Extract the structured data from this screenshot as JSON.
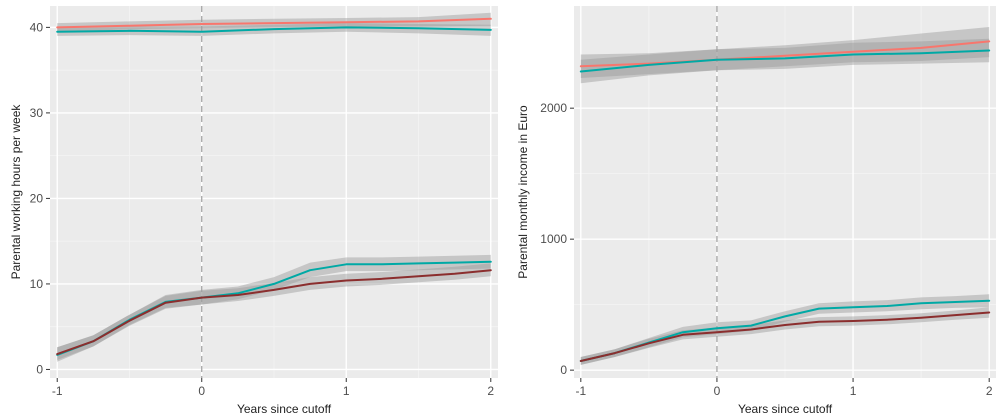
{
  "colors": {
    "panel_bg": "#EBEBEB",
    "grid_major": "#FFFFFF",
    "grid_minor": "#F4F4F4",
    "cutoff_line": "#9E9E9E",
    "ribbon": "#999999",
    "tick_text": "#4D4D4D",
    "axis_title": "#222222"
  },
  "chart_data": [
    {
      "type": "line",
      "xlabel": "Years since cutoff",
      "ylabel": "Parental working hours per week",
      "xlim": [
        -1.05,
        2.05
      ],
      "ylim": [
        -1,
        42.5
      ],
      "x_ticks": [
        -1,
        0,
        1,
        2
      ],
      "x_tick_labels": [
        "-1",
        "0",
        "1",
        "2"
      ],
      "y_ticks": [
        0,
        10,
        20,
        30,
        40
      ],
      "y_tick_labels": [
        "0",
        "10",
        "20",
        "30",
        "40"
      ],
      "vline": 0,
      "grid": true,
      "legend": "none",
      "series": [
        {
          "color": "#F8766D",
          "x": [
            -1,
            -0.5,
            0,
            0.5,
            1,
            1.5,
            2
          ],
          "y": [
            40.0,
            40.2,
            40.4,
            40.5,
            40.6,
            40.7,
            41.0
          ],
          "ci_low": [
            39.4,
            39.8,
            39.9,
            40.0,
            40.1,
            40.1,
            40.2
          ],
          "ci_high": [
            40.5,
            40.7,
            40.9,
            41.0,
            41.1,
            41.2,
            41.7
          ]
        },
        {
          "color": "#00A9A5",
          "x": [
            -1,
            -0.5,
            0,
            0.5,
            1,
            1.5,
            2
          ],
          "y": [
            39.5,
            39.6,
            39.5,
            39.8,
            40.0,
            39.9,
            39.7
          ],
          "ci_low": [
            39.0,
            39.1,
            39.0,
            39.3,
            39.5,
            39.3,
            39.0
          ],
          "ci_high": [
            40.0,
            40.1,
            40.1,
            40.3,
            40.5,
            40.4,
            40.3
          ]
        },
        {
          "color": "#00A9A5",
          "x": [
            -1,
            -0.75,
            -0.5,
            -0.25,
            0,
            0.25,
            0.5,
            0.75,
            1,
            1.25,
            1.5,
            1.75,
            2
          ],
          "y": [
            1.7,
            3.3,
            5.8,
            7.9,
            8.4,
            8.9,
            10.0,
            11.6,
            12.3,
            12.3,
            12.4,
            12.5,
            12.6
          ],
          "ci_low": [
            0.9,
            2.7,
            5.2,
            7.2,
            7.6,
            8.2,
            9.3,
            10.8,
            11.5,
            11.5,
            11.6,
            11.7,
            11.8
          ],
          "ci_high": [
            2.6,
            4.0,
            6.4,
            8.7,
            9.3,
            9.7,
            10.8,
            12.5,
            13.1,
            13.1,
            13.2,
            13.3,
            13.4
          ]
        },
        {
          "color": "#8B2E2E",
          "x": [
            -1,
            -0.75,
            -0.5,
            -0.25,
            0,
            0.25,
            0.5,
            0.75,
            1,
            1.25,
            1.5,
            1.75,
            2
          ],
          "y": [
            1.8,
            3.3,
            5.7,
            7.8,
            8.4,
            8.7,
            9.3,
            10.0,
            10.4,
            10.6,
            10.9,
            11.2,
            11.6
          ],
          "ci_low": [
            1.1,
            2.7,
            5.1,
            7.1,
            7.6,
            8.0,
            8.6,
            9.3,
            9.7,
            9.9,
            10.2,
            10.5,
            10.9
          ],
          "ci_high": [
            2.6,
            4.0,
            6.4,
            8.6,
            9.2,
            9.5,
            10.1,
            10.8,
            11.2,
            11.4,
            11.7,
            12.0,
            12.4
          ]
        }
      ]
    },
    {
      "type": "line",
      "xlabel": "Years since cutoff",
      "ylabel": "Parental monthly income in Euro",
      "xlim": [
        -1.05,
        2.05
      ],
      "ylim": [
        -60,
        2780
      ],
      "x_ticks": [
        -1,
        0,
        1,
        2
      ],
      "x_tick_labels": [
        "-1",
        "0",
        "1",
        "2"
      ],
      "y_ticks": [
        0,
        1000,
        2000
      ],
      "y_tick_labels": [
        "0",
        "1000",
        "2000"
      ],
      "vline": 0,
      "grid": true,
      "legend": "none",
      "series": [
        {
          "color": "#F8766D",
          "x": [
            -1,
            -0.5,
            0,
            0.5,
            1,
            1.5,
            2
          ],
          "y": [
            2320,
            2340,
            2370,
            2400,
            2430,
            2460,
            2510
          ],
          "ci_low": [
            2230,
            2260,
            2290,
            2320,
            2350,
            2360,
            2390
          ],
          "ci_high": [
            2410,
            2420,
            2450,
            2480,
            2520,
            2570,
            2620
          ]
        },
        {
          "color": "#00A9A5",
          "x": [
            -1,
            -0.5,
            0,
            0.5,
            1,
            1.5,
            2
          ],
          "y": [
            2280,
            2330,
            2370,
            2380,
            2410,
            2420,
            2440
          ],
          "ci_low": [
            2190,
            2250,
            2290,
            2300,
            2330,
            2340,
            2350
          ],
          "ci_high": [
            2370,
            2410,
            2450,
            2460,
            2500,
            2510,
            2530
          ]
        },
        {
          "color": "#00A9A5",
          "x": [
            -1,
            -0.75,
            -0.5,
            -0.25,
            0,
            0.25,
            0.5,
            0.75,
            1,
            1.25,
            1.5,
            1.75,
            2
          ],
          "y": [
            70,
            130,
            210,
            290,
            320,
            340,
            410,
            470,
            480,
            490,
            510,
            520,
            530
          ],
          "ci_low": [
            40,
            100,
            175,
            250,
            275,
            300,
            370,
            430,
            440,
            450,
            465,
            475,
            480
          ],
          "ci_high": [
            100,
            160,
            245,
            330,
            365,
            380,
            450,
            510,
            525,
            535,
            555,
            565,
            580
          ]
        },
        {
          "color": "#8B2E2E",
          "x": [
            -1,
            -0.75,
            -0.5,
            -0.25,
            0,
            0.25,
            0.5,
            0.75,
            1,
            1.25,
            1.5,
            1.75,
            2
          ],
          "y": [
            70,
            130,
            205,
            270,
            290,
            310,
            345,
            370,
            375,
            385,
            400,
            420,
            440
          ],
          "ci_low": [
            40,
            100,
            170,
            235,
            255,
            275,
            310,
            335,
            340,
            350,
            365,
            385,
            400
          ],
          "ci_high": [
            100,
            160,
            240,
            305,
            325,
            345,
            380,
            405,
            410,
            420,
            435,
            455,
            480
          ]
        }
      ]
    }
  ]
}
